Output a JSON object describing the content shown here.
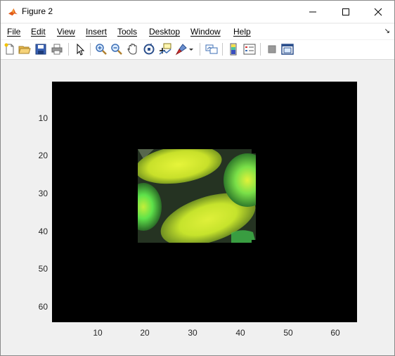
{
  "window": {
    "title": "Figure 2",
    "minimize_icon": "minimize-icon",
    "maximize_icon": "maximize-icon",
    "close_icon": "close-icon"
  },
  "menu": {
    "items": [
      "File",
      "Edit",
      "View",
      "Insert",
      "Tools",
      "Desktop",
      "Window",
      "Help"
    ]
  },
  "toolbar": {
    "icons": [
      "new-figure-icon",
      "open-file-icon",
      "save-icon",
      "print-icon",
      "pointer-icon",
      "zoom-in-icon",
      "zoom-out-icon",
      "pan-icon",
      "rotate-3d-icon",
      "data-cursor-icon",
      "brush-icon",
      "dropdown-arrow-icon",
      "link-plot-icon",
      "colorbar-icon",
      "legend-icon",
      "hide-plot-tools-icon",
      "show-plot-tools-icon"
    ]
  },
  "axes": {
    "yticks": [
      "10",
      "20",
      "30",
      "40",
      "50",
      "60"
    ],
    "xticks": [
      "10",
      "20",
      "30",
      "40",
      "50",
      "60"
    ],
    "xlim": [
      0.5,
      64.5
    ],
    "ylim": [
      0.5,
      64.5
    ],
    "image_region": {
      "x_start": 18,
      "x_end": 42,
      "y_start": 18,
      "y_end": 43
    },
    "colors": {
      "background": "#000000",
      "yellow_green": "#d8f02a",
      "bright_green": "#4ee64a",
      "dark_green": "#1f4a1c"
    }
  }
}
